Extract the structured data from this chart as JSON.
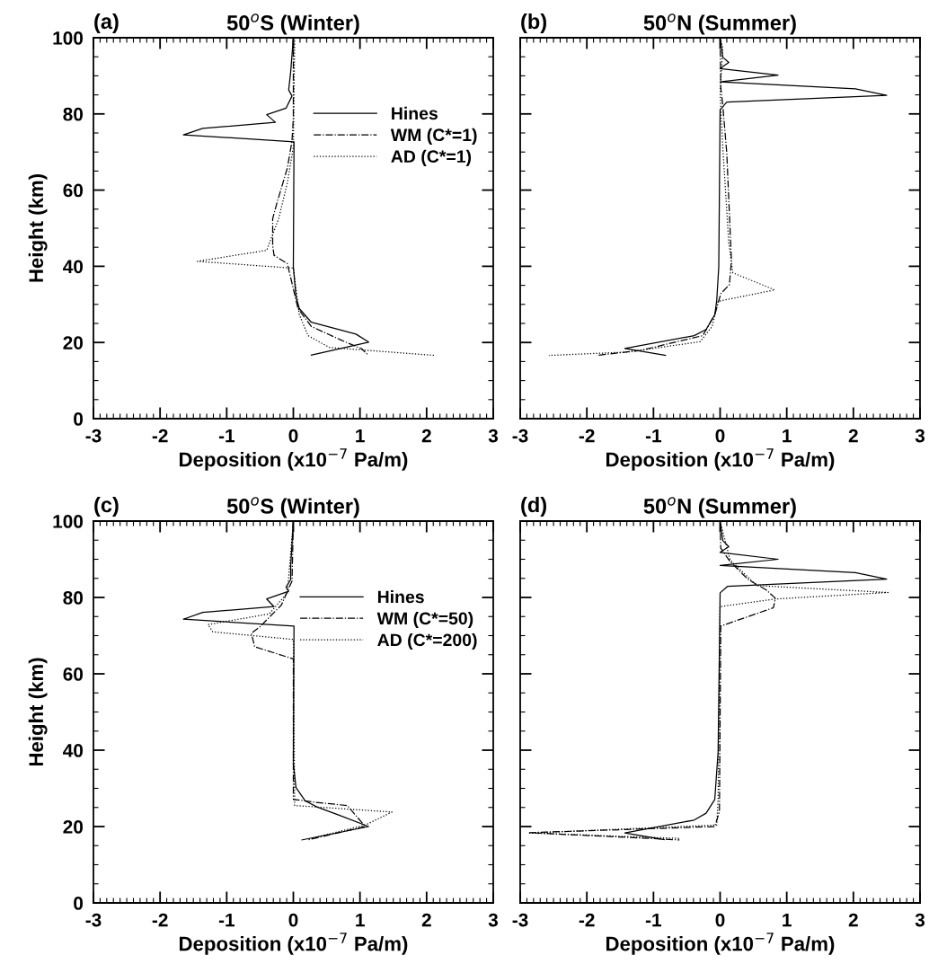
{
  "chart_data": [
    {
      "type": "line",
      "title": "50$^{o}$S (Winter)",
      "annotations": [
        "(a)"
      ],
      "xlabel": "Deposition (x10$^{−7}$ Pa/m)",
      "ylabel": "Height (km)",
      "xlim": [
        -3,
        3
      ],
      "ylim": [
        0,
        100
      ],
      "xticks": [
        -3,
        -2,
        -1,
        0,
        1,
        2,
        3
      ],
      "yticks": [
        0,
        20,
        40,
        60,
        80,
        100
      ],
      "legend": "top right",
      "grid": false,
      "series": [
        {
          "name": "Hines",
          "color": "#000000",
          "line_style": "solid",
          "x": [
            0,
            -0.04,
            -0.07,
            -0.02,
            -0.11,
            -0.4,
            -0.27,
            -1.36,
            -1.65,
            0.01,
            0,
            0.04,
            0.09,
            0.27,
            0.94,
            1.13,
            0.27
          ],
          "values": [
            100,
            91,
            86.3,
            84.7,
            81.5,
            79.8,
            77.8,
            76.2,
            74.5,
            72.7,
            39.9,
            32,
            28.9,
            25.3,
            22.2,
            20.1,
            16.7
          ]
        },
        {
          "name": "WM (C*=1)",
          "color": "#000000",
          "line_style": "dashdot",
          "x": [
            0,
            0,
            -0.02,
            -0.09,
            -0.25,
            -0.31,
            -0.31,
            -0.29,
            -0.09,
            0.07,
            0.27,
            0.72,
            1.03,
            1.12
          ],
          "values": [
            100,
            79,
            72.9,
            65.8,
            56.4,
            52.5,
            45.4,
            42.9,
            40.7,
            28.9,
            24.2,
            20.6,
            18.3,
            16.7
          ]
        },
        {
          "name": "AD (C*=1)",
          "color": "#000000",
          "line_style": "dotted",
          "x": [
            0.02,
            0,
            -0.09,
            -0.22,
            -0.4,
            -1.44,
            0,
            0.09,
            0.22,
            0.54,
            2.13
          ],
          "values": [
            100,
            71.3,
            61.9,
            52.5,
            44.2,
            41.3,
            39.5,
            27.3,
            21.8,
            18.7,
            16.6
          ]
        }
      ]
    },
    {
      "type": "line",
      "title": "50$^{o}$N (Summer)",
      "annotations": [
        "(b)"
      ],
      "xlabel": "Deposition (x10$^{−7}$ Pa/m)",
      "xlim": [
        -3,
        3
      ],
      "ylim": [
        0,
        100
      ],
      "xticks": [
        -3,
        -2,
        -1,
        0,
        1,
        2,
        3
      ],
      "yticks": [
        0,
        20,
        40,
        60,
        80,
        100
      ],
      "tick_labels": "x",
      "grid": false,
      "series": [
        {
          "color": "#000000",
          "line_style": "solid",
          "x": [
            0,
            0.04,
            0.13,
            0,
            0.87,
            0,
            2.03,
            2.5,
            0.1,
            0,
            -0.02,
            -0.05,
            -0.08,
            -0.21,
            -0.39,
            -1.43,
            -0.82
          ],
          "values": [
            100,
            94.9,
            93.5,
            91.9,
            90.2,
            88.4,
            86.6,
            84.9,
            83.1,
            81.1,
            39.9,
            31.2,
            27.3,
            23.4,
            21.8,
            18.4,
            16.6
          ]
        },
        {
          "color": "#000000",
          "line_style": "dashdot",
          "x": [
            0,
            0.01,
            0.04,
            0.1,
            0.17,
            0.14,
            0.01,
            -0.08,
            -0.26,
            -1.2,
            -1.85
          ],
          "values": [
            100,
            87,
            82.3,
            69.7,
            41.5,
            35.2,
            32.8,
            27.3,
            21.8,
            17.9,
            16.6
          ]
        },
        {
          "color": "#000000",
          "line_style": "dotted",
          "x": [
            0,
            0.04,
            0,
            0.04,
            0.13,
            0.19,
            0.82,
            -0.03,
            -0.12,
            -0.3,
            -1.38,
            -2.57
          ],
          "values": [
            100,
            97.3,
            85.5,
            71.3,
            46.2,
            38.3,
            33.8,
            30.8,
            24.2,
            20.2,
            17.5,
            16.6
          ]
        }
      ]
    },
    {
      "type": "line",
      "title": "50$^{o}$S (Winter)",
      "annotations": [
        "(c)"
      ],
      "xlabel": "Deposition (x10$^{−7}$ Pa/m)",
      "ylabel": "Height (km)",
      "xlim": [
        -3,
        3
      ],
      "ylim": [
        0,
        100
      ],
      "xticks": [
        -3,
        -2,
        -1,
        0,
        1,
        2,
        3
      ],
      "yticks": [
        0,
        20,
        40,
        60,
        80,
        100
      ],
      "legend": "top right",
      "grid": false,
      "series": [
        {
          "name": "Hines",
          "color": "#000000",
          "line_style": "solid",
          "x": [
            0,
            -0.04,
            -0.04,
            -0.11,
            -0.07,
            -0.4,
            -0.29,
            -1.36,
            -1.65,
            0.01,
            0,
            0.04,
            0.18,
            0.36,
            0.67,
            1.13,
            0.13
          ],
          "values": [
            100,
            88.2,
            84.7,
            82.7,
            81.6,
            79.6,
            77.6,
            76.1,
            74.3,
            72.5,
            36.5,
            30.2,
            26.7,
            25.1,
            23.1,
            20,
            16.5
          ]
        },
        {
          "name": "WM (C*=50)",
          "color": "#000000",
          "line_style": "dashdot",
          "x": [
            0,
            -0.02,
            -0.18,
            -0.49,
            -0.63,
            -0.58,
            0,
            0,
            0.31,
            0.81,
            1.08,
            0.22
          ],
          "values": [
            100,
            84.3,
            78,
            72.5,
            70.6,
            67.1,
            63.9,
            27.1,
            26.4,
            25.5,
            20,
            16.5
          ]
        },
        {
          "name": "AD (C*=200)",
          "color": "#000000",
          "line_style": "dotted",
          "x": [
            0,
            -0.09,
            -0.36,
            -1.28,
            -1.21,
            0,
            0.02,
            1.48,
            1.08,
            0.27
          ],
          "values": [
            100,
            81.2,
            75.7,
            72.9,
            71,
            69,
            25.5,
            23.8,
            20.4,
            16.9
          ]
        }
      ]
    },
    {
      "type": "line",
      "title": "50$^{o}$N (Summer)",
      "annotations": [
        "(d)"
      ],
      "xlabel": "Deposition (x10$^{−7}$ Pa/m)",
      "xlim": [
        -3,
        3
      ],
      "ylim": [
        0,
        100
      ],
      "xticks": [
        -3,
        -2,
        -1,
        0,
        1,
        2,
        3
      ],
      "yticks": [
        0,
        20,
        40,
        60,
        80,
        100
      ],
      "tick_labels": "x",
      "grid": false,
      "series": [
        {
          "color": "#000000",
          "line_style": "solid",
          "x": [
            0,
            0.04,
            0.13,
            0,
            0.87,
            0,
            2.03,
            2.5,
            0.11,
            0,
            -0.03,
            -0.08,
            -0.21,
            -0.39,
            -1.43,
            -0.84
          ],
          "values": [
            100,
            94.9,
            93.3,
            91.8,
            90,
            88.4,
            86.5,
            84.8,
            82.9,
            81.2,
            39.6,
            27.1,
            23.5,
            21.7,
            18.3,
            16.6
          ]
        },
        {
          "color": "#000000",
          "line_style": "dashdot",
          "x": [
            0,
            0.01,
            0.15,
            0.42,
            0.69,
            0.83,
            0.8,
            0.01,
            -0.01,
            -0.08,
            -2.86,
            -0.61
          ],
          "values": [
            100,
            92.9,
            89.4,
            84.7,
            82,
            79.8,
            77.3,
            72.5,
            23.9,
            20,
            18.4,
            16.5
          ]
        },
        {
          "color": "#000000",
          "line_style": "dotted",
          "x": [
            0,
            0.15,
            0.55,
            2.52,
            0.83,
            0,
            -0.03,
            -0.05,
            -2.86,
            -0.61
          ],
          "values": [
            100,
            89.8,
            83.1,
            81.3,
            79.6,
            77.6,
            27.1,
            20.4,
            18.3,
            16.9
          ]
        }
      ]
    }
  ]
}
